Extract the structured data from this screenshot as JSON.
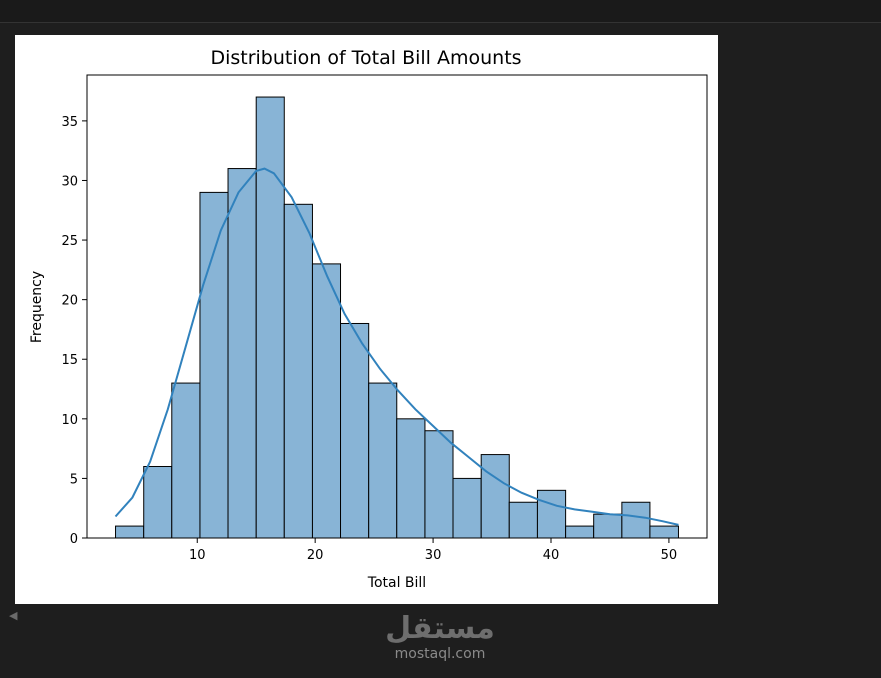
{
  "chart_data": {
    "type": "bar",
    "title": "Distribution of Total Bill Amounts",
    "xlabel": "Total Bill",
    "ylabel": "Frequency",
    "xlim": [
      0.65,
      53.23
    ],
    "ylim": [
      0,
      38.85
    ],
    "xticks": [
      10,
      20,
      30,
      40,
      50
    ],
    "yticks": [
      0,
      5,
      10,
      15,
      20,
      25,
      30,
      35
    ],
    "bin_edges": [
      3.07,
      5.46,
      7.84,
      10.23,
      12.61,
      15.0,
      17.38,
      19.77,
      22.15,
      24.54,
      26.92,
      29.31,
      31.69,
      34.08,
      36.46,
      38.85,
      41.24,
      43.62,
      46.01,
      48.39,
      50.81
    ],
    "values": [
      1,
      6,
      13,
      29,
      31,
      37,
      28,
      23,
      18,
      13,
      10,
      9,
      5,
      7,
      3,
      4,
      1,
      2,
      3,
      1
    ],
    "bar_color": "#88b4d6",
    "edge_color": "#000000",
    "kde": {
      "color": "#3182bd",
      "x": [
        3.07,
        4.5,
        6.0,
        7.5,
        9.0,
        10.5,
        12.0,
        13.5,
        15.0,
        15.7,
        16.5,
        18.0,
        19.5,
        21.0,
        22.5,
        24.0,
        25.5,
        27.0,
        28.5,
        30.0,
        31.5,
        33.0,
        34.5,
        36.0,
        37.5,
        39.0,
        40.5,
        42.0,
        43.5,
        45.0,
        46.5,
        48.0,
        49.5,
        50.81
      ],
      "y": [
        1.8,
        3.4,
        6.4,
        10.8,
        16.0,
        21.2,
        25.8,
        29.0,
        30.8,
        31.0,
        30.6,
        28.6,
        25.6,
        22.0,
        18.8,
        16.3,
        14.2,
        12.4,
        10.8,
        9.4,
        8.0,
        6.8,
        5.6,
        4.6,
        3.8,
        3.2,
        2.7,
        2.4,
        2.2,
        2.0,
        1.9,
        1.7,
        1.4,
        1.1
      ]
    }
  },
  "watermark": {
    "logo": "مستقل",
    "url": "mostaql.com"
  }
}
